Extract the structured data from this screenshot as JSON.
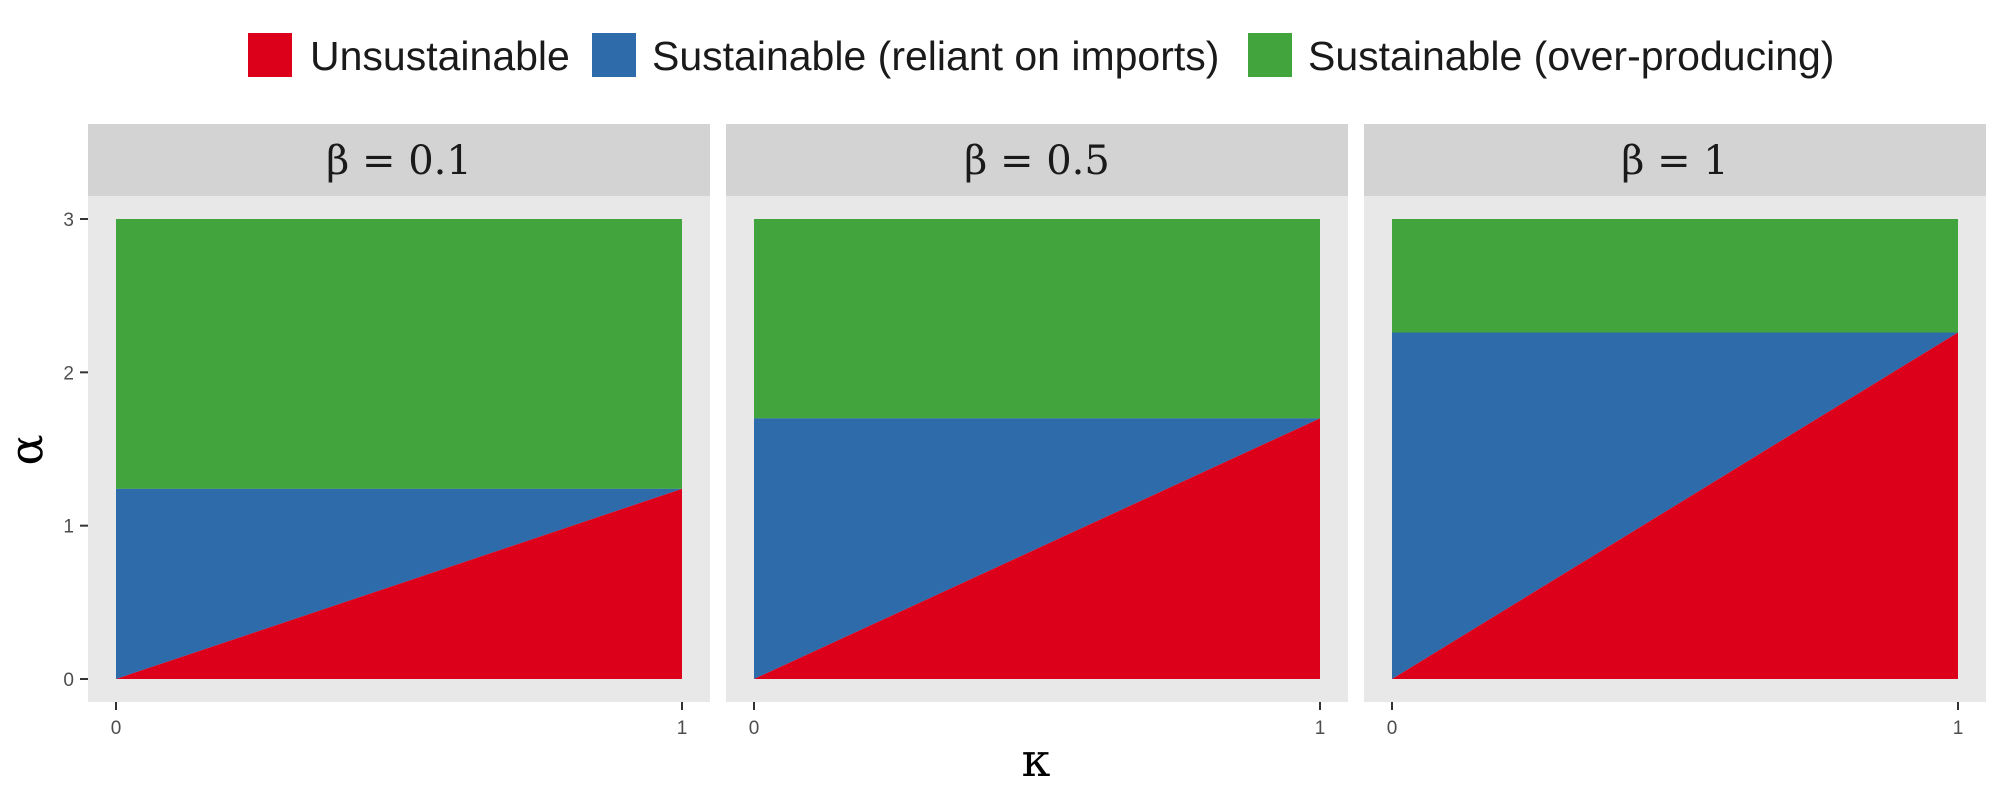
{
  "chart_data": {
    "type": "area",
    "legend": {
      "position": "top",
      "entries": [
        {
          "label": "Unsustainable",
          "color": "#DC001A"
        },
        {
          "label": "Sustainable (reliant on imports)",
          "color": "#2E6BAA"
        },
        {
          "label": "Sustainable (over-producing)",
          "color": "#42A43C"
        }
      ]
    },
    "xlabel": "κ",
    "ylabel": "α",
    "xlim": [
      0,
      1
    ],
    "ylim": [
      0,
      3
    ],
    "xticks": [
      "0",
      "1"
    ],
    "yticks": [
      "0",
      "1",
      "2",
      "3"
    ],
    "grid": false,
    "panels": [
      {
        "strip": "β = 0.1",
        "boundary": 1.24,
        "regions": {
          "unsustainable": {
            "x": [
              0,
              1
            ],
            "y_upper": [
              0,
              1.24
            ]
          },
          "reliant_on_imports": {
            "x": [
              0,
              1
            ],
            "y_lower": [
              0,
              1.24
            ],
            "y_upper": [
              1.24,
              1.24
            ]
          },
          "over_producing": {
            "x": [
              0,
              1
            ],
            "y_lower": [
              1.24,
              1.24
            ],
            "y_upper": [
              3,
              3
            ]
          }
        }
      },
      {
        "strip": "β = 0.5",
        "boundary": 1.7,
        "regions": {
          "unsustainable": {
            "x": [
              0,
              1
            ],
            "y_upper": [
              0,
              1.7
            ]
          },
          "reliant_on_imports": {
            "x": [
              0,
              1
            ],
            "y_lower": [
              0,
              1.7
            ],
            "y_upper": [
              1.7,
              1.7
            ]
          },
          "over_producing": {
            "x": [
              0,
              1
            ],
            "y_lower": [
              1.7,
              1.7
            ],
            "y_upper": [
              3,
              3
            ]
          }
        }
      },
      {
        "strip": "β = 1",
        "boundary": 2.26,
        "regions": {
          "unsustainable": {
            "x": [
              0,
              1
            ],
            "y_upper": [
              0,
              2.26
            ]
          },
          "reliant_on_imports": {
            "x": [
              0,
              1
            ],
            "y_lower": [
              0,
              2.26
            ],
            "y_upper": [
              2.26,
              2.26
            ]
          },
          "over_producing": {
            "x": [
              0,
              1
            ],
            "y_lower": [
              2.26,
              2.26
            ],
            "y_upper": [
              3,
              3
            ]
          }
        }
      }
    ]
  }
}
